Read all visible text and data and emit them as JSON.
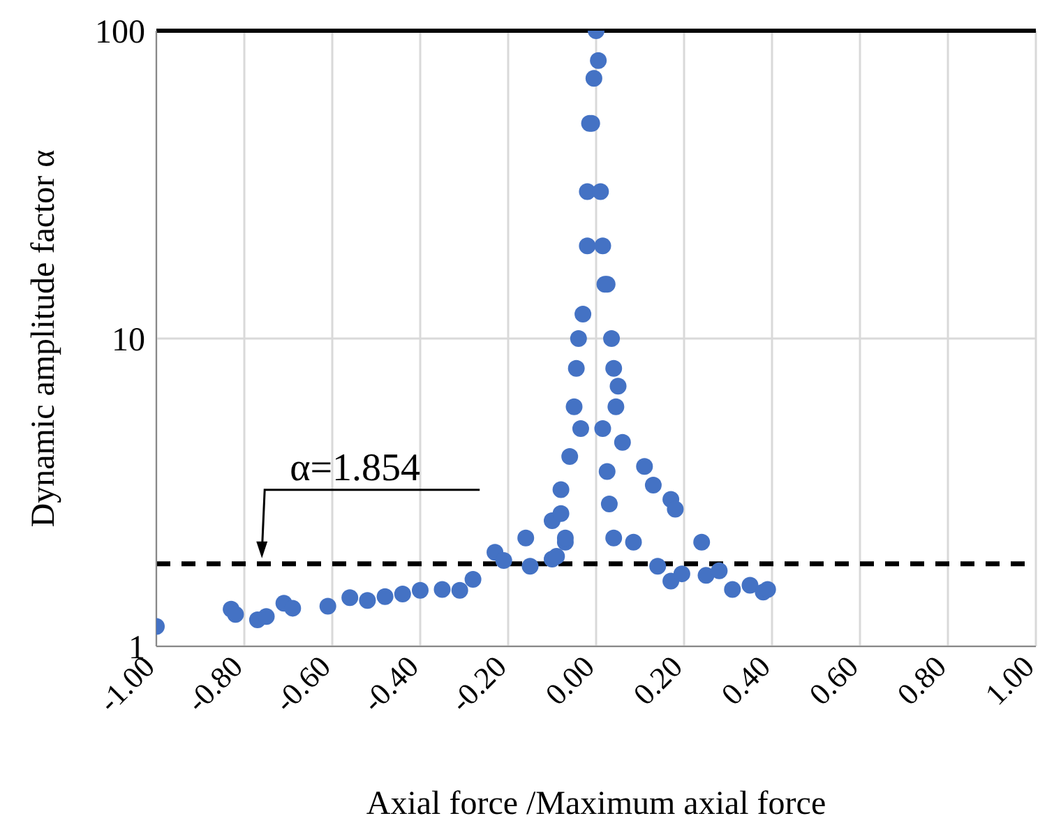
{
  "chart_data": {
    "type": "scatter",
    "xlabel": "Axial force /Maximum axial force",
    "ylabel": "Dynamic amplitude factor α",
    "x": [
      -1.0,
      -0.83,
      -0.82,
      -0.77,
      -0.75,
      -0.71,
      -0.69,
      -0.61,
      -0.56,
      -0.52,
      -0.48,
      -0.44,
      -0.4,
      -0.35,
      -0.31,
      -0.28,
      -0.23,
      -0.21,
      -0.16,
      -0.15,
      -0.1,
      -0.1,
      -0.09,
      -0.08,
      -0.08,
      -0.07,
      -0.07,
      -0.06,
      -0.05,
      -0.045,
      -0.04,
      -0.035,
      -0.03,
      -0.02,
      -0.02,
      -0.015,
      -0.01,
      -0.005,
      0.0,
      0.005,
      0.01,
      0.015,
      0.02,
      0.025,
      0.035,
      0.04,
      0.045,
      0.05,
      0.015,
      0.025,
      0.03,
      0.04,
      0.06,
      0.085,
      0.11,
      0.13,
      0.14,
      0.17,
      0.17,
      0.18,
      0.195,
      0.24,
      0.25,
      0.28,
      0.31,
      0.35,
      0.38,
      0.39
    ],
    "values": [
      1.16,
      1.32,
      1.27,
      1.22,
      1.25,
      1.38,
      1.33,
      1.35,
      1.44,
      1.41,
      1.45,
      1.48,
      1.52,
      1.53,
      1.52,
      1.65,
      2.02,
      1.9,
      2.25,
      1.82,
      2.56,
      1.92,
      1.96,
      3.23,
      2.7,
      2.18,
      2.25,
      4.14,
      6,
      8,
      10,
      5.1,
      12,
      20,
      30,
      50,
      50,
      70,
      100,
      80,
      30,
      20,
      15,
      15,
      10,
      8,
      6,
      7,
      5.1,
      3.7,
      2.9,
      2.25,
      4.6,
      2.18,
      3.84,
      3.34,
      1.82,
      3.0,
      1.63,
      2.79,
      1.72,
      2.18,
      1.7,
      1.76,
      1.53,
      1.58,
      1.5,
      1.53
    ],
    "color": "#4472c4",
    "marker": "circle",
    "log": true,
    "grid": true,
    "legend": false,
    "xlim": [
      -1,
      1
    ],
    "xticks": [
      {
        "value": -1,
        "label": "-1.00"
      },
      {
        "value": -0.8,
        "label": "-0.80"
      },
      {
        "value": -0.6,
        "label": "-0.60"
      },
      {
        "value": -0.4,
        "label": "-0.40"
      },
      {
        "value": -0.2,
        "label": "-0.20"
      },
      {
        "value": 0,
        "label": "0.00"
      },
      {
        "value": 0.2,
        "label": "0.20"
      },
      {
        "value": 0.4,
        "label": "0.40"
      },
      {
        "value": 0.6,
        "label": "0.60"
      },
      {
        "value": 0.8,
        "label": "0.80"
      },
      {
        "value": 1,
        "label": "1.00"
      }
    ],
    "ylim": [
      1,
      100
    ],
    "yticks": [
      1,
      10,
      100
    ],
    "ref_lines": [
      {
        "axis": "y",
        "value": 1.854,
        "color": "#000000",
        "line_style": "dashed"
      }
    ],
    "annotations": [
      {
        "text": "α=1.854",
        "x": -0.76,
        "y": 1.854
      }
    ]
  }
}
